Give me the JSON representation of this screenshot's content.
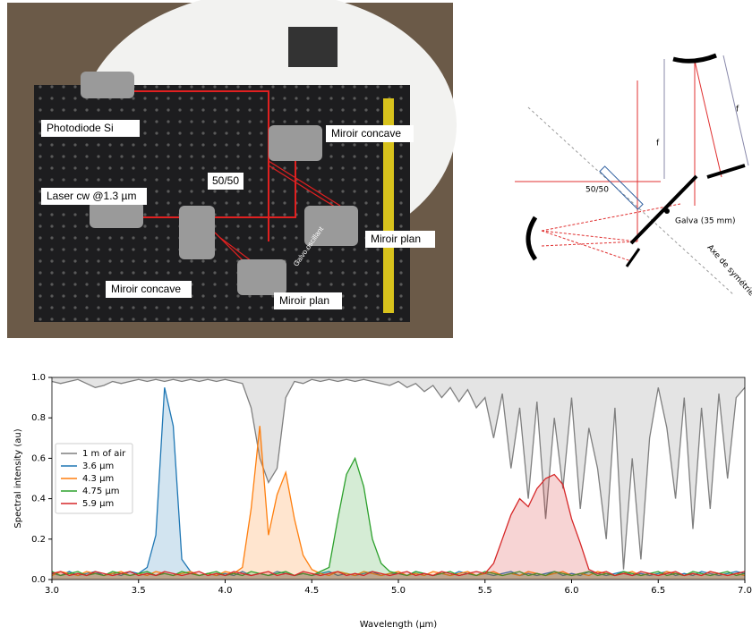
{
  "photo": {
    "labels": [
      "Photodiode Si",
      "Miroir concave",
      "50/50",
      "Laser cw @1.3 µm",
      "Galvo oscillant",
      "Miroir plan",
      "Miroir concave",
      "Miroir plan"
    ]
  },
  "diagram": {
    "labels": [
      "f",
      "f",
      "50/50",
      "Galva (35 mm)",
      "Axe de symétrie"
    ]
  },
  "chart_data": {
    "type": "line",
    "xlabel": "Wavelength (µm)",
    "ylabel": "Spectral intensity (au)",
    "xlim": [
      3,
      7
    ],
    "ylim": [
      0,
      1
    ],
    "xticks": [
      {
        "value": 3,
        "label": "3.0"
      },
      3.5,
      {
        "value": 4,
        "label": "4.0"
      },
      4.5,
      {
        "value": 5,
        "label": "5.0"
      },
      5.5,
      {
        "value": 6,
        "label": "6.0"
      },
      6.5,
      {
        "value": 7,
        "label": "7.0"
      }
    ],
    "yticks": [
      {
        "value": 0,
        "label": "0.0"
      },
      0.2,
      0.4,
      0.6,
      0.8,
      {
        "value": 1,
        "label": "1.0"
      }
    ],
    "legend": "center left",
    "x": [
      3,
      3.05,
      3.1,
      3.15,
      3.2,
      3.25,
      3.3,
      3.35,
      3.4,
      3.45,
      3.5,
      3.55,
      3.6,
      3.65,
      3.7,
      3.75,
      3.8,
      3.85,
      3.9,
      3.95,
      4,
      4.05,
      4.1,
      4.15,
      4.2,
      4.25,
      4.3,
      4.35,
      4.4,
      4.45,
      4.5,
      4.55,
      4.6,
      4.65,
      4.7,
      4.75,
      4.8,
      4.85,
      4.9,
      4.95,
      5,
      5.05,
      5.1,
      5.15,
      5.2,
      5.25,
      5.3,
      5.35,
      5.4,
      5.45,
      5.5,
      5.55,
      5.6,
      5.65,
      5.7,
      5.75,
      5.8,
      5.85,
      5.9,
      5.95,
      6,
      6.05,
      6.1,
      6.15,
      6.2,
      6.25,
      6.3,
      6.35,
      6.4,
      6.45,
      6.5,
      6.55,
      6.6,
      6.65,
      6.7,
      6.75,
      6.8,
      6.85,
      6.9,
      6.95,
      7
    ],
    "series": [
      {
        "name": "1 m of air",
        "color": "#7f7f7f",
        "values": [
          0.98,
          0.97,
          0.98,
          0.99,
          0.97,
          0.95,
          0.96,
          0.98,
          0.97,
          0.98,
          0.99,
          0.98,
          0.99,
          0.98,
          0.99,
          0.98,
          0.99,
          0.98,
          0.99,
          0.98,
          0.99,
          0.98,
          0.97,
          0.85,
          0.6,
          0.48,
          0.55,
          0.9,
          0.98,
          0.97,
          0.99,
          0.98,
          0.99,
          0.98,
          0.99,
          0.98,
          0.99,
          0.98,
          0.97,
          0.96,
          0.98,
          0.95,
          0.97,
          0.93,
          0.96,
          0.9,
          0.95,
          0.88,
          0.94,
          0.85,
          0.9,
          0.7,
          0.92,
          0.55,
          0.85,
          0.4,
          0.88,
          0.3,
          0.8,
          0.45,
          0.9,
          0.35,
          0.75,
          0.55,
          0.2,
          0.85,
          0.05,
          0.6,
          0.1,
          0.7,
          0.95,
          0.75,
          0.4,
          0.9,
          0.25,
          0.85,
          0.35,
          0.92,
          0.5,
          0.9,
          0.95
        ]
      },
      {
        "name": "3.6 µm",
        "color": "#1f77b4",
        "values": [
          0.03,
          0.02,
          0.04,
          0.02,
          0.03,
          0.04,
          0.02,
          0.03,
          0.02,
          0.04,
          0.03,
          0.06,
          0.22,
          0.95,
          0.76,
          0.1,
          0.04,
          0.02,
          0.03,
          0.02,
          0.03,
          0.02,
          0.04,
          0.02,
          0.03,
          0.02,
          0.04,
          0.03,
          0.02,
          0.03,
          0.02,
          0.03,
          0.04,
          0.02,
          0.03,
          0.02,
          0.03,
          0.04,
          0.02,
          0.03,
          0.03,
          0.02,
          0.04,
          0.03,
          0.02,
          0.03,
          0.02,
          0.04,
          0.03,
          0.02,
          0.03,
          0.02,
          0.03,
          0.04,
          0.02,
          0.03,
          0.02,
          0.03,
          0.04,
          0.02,
          0.03,
          0.02,
          0.04,
          0.03,
          0.02,
          0.03,
          0.04,
          0.02,
          0.03,
          0.02,
          0.03,
          0.04,
          0.02,
          0.03,
          0.02,
          0.04,
          0.03,
          0.02,
          0.03,
          0.04,
          0.03
        ]
      },
      {
        "name": "4.3 µm",
        "color": "#ff7f0e",
        "values": [
          0.02,
          0.04,
          0.03,
          0.02,
          0.04,
          0.03,
          0.02,
          0.03,
          0.04,
          0.02,
          0.03,
          0.02,
          0.04,
          0.03,
          0.02,
          0.03,
          0.04,
          0.02,
          0.03,
          0.02,
          0.04,
          0.03,
          0.06,
          0.35,
          0.76,
          0.22,
          0.42,
          0.53,
          0.3,
          0.12,
          0.05,
          0.03,
          0.02,
          0.04,
          0.03,
          0.02,
          0.04,
          0.03,
          0.02,
          0.03,
          0.04,
          0.02,
          0.03,
          0.02,
          0.04,
          0.03,
          0.02,
          0.03,
          0.04,
          0.02,
          0.03,
          0.04,
          0.02,
          0.03,
          0.02,
          0.04,
          0.03,
          0.02,
          0.03,
          0.04,
          0.02,
          0.03,
          0.02,
          0.04,
          0.03,
          0.02,
          0.03,
          0.04,
          0.02,
          0.03,
          0.02,
          0.04,
          0.03,
          0.02,
          0.03,
          0.02,
          0.04,
          0.03,
          0.02,
          0.03,
          0.02
        ]
      },
      {
        "name": "4.75 µm",
        "color": "#2ca02c",
        "values": [
          0.04,
          0.02,
          0.03,
          0.04,
          0.02,
          0.03,
          0.02,
          0.04,
          0.03,
          0.02,
          0.03,
          0.04,
          0.02,
          0.03,
          0.02,
          0.04,
          0.03,
          0.02,
          0.03,
          0.04,
          0.02,
          0.03,
          0.02,
          0.04,
          0.03,
          0.02,
          0.03,
          0.04,
          0.02,
          0.03,
          0.02,
          0.04,
          0.06,
          0.3,
          0.52,
          0.6,
          0.46,
          0.2,
          0.08,
          0.04,
          0.03,
          0.02,
          0.04,
          0.03,
          0.02,
          0.03,
          0.04,
          0.02,
          0.03,
          0.02,
          0.04,
          0.03,
          0.02,
          0.03,
          0.04,
          0.02,
          0.03,
          0.02,
          0.04,
          0.03,
          0.02,
          0.03,
          0.04,
          0.02,
          0.03,
          0.02,
          0.04,
          0.03,
          0.02,
          0.03,
          0.04,
          0.02,
          0.03,
          0.02,
          0.04,
          0.03,
          0.02,
          0.03,
          0.04,
          0.02,
          0.03
        ]
      },
      {
        "name": "5.9 µm",
        "color": "#d62728",
        "values": [
          0.03,
          0.04,
          0.02,
          0.03,
          0.02,
          0.04,
          0.03,
          0.02,
          0.03,
          0.04,
          0.02,
          0.03,
          0.02,
          0.04,
          0.03,
          0.02,
          0.03,
          0.04,
          0.02,
          0.03,
          0.02,
          0.04,
          0.03,
          0.02,
          0.03,
          0.04,
          0.02,
          0.03,
          0.02,
          0.04,
          0.03,
          0.02,
          0.03,
          0.04,
          0.02,
          0.03,
          0.02,
          0.04,
          0.03,
          0.02,
          0.03,
          0.04,
          0.02,
          0.03,
          0.02,
          0.04,
          0.03,
          0.02,
          0.03,
          0.04,
          0.03,
          0.08,
          0.2,
          0.32,
          0.4,
          0.36,
          0.45,
          0.5,
          0.52,
          0.47,
          0.3,
          0.18,
          0.05,
          0.03,
          0.04,
          0.02,
          0.03,
          0.02,
          0.04,
          0.03,
          0.02,
          0.03,
          0.04,
          0.02,
          0.03,
          0.02,
          0.04,
          0.03,
          0.02,
          0.03,
          0.04
        ]
      }
    ]
  }
}
